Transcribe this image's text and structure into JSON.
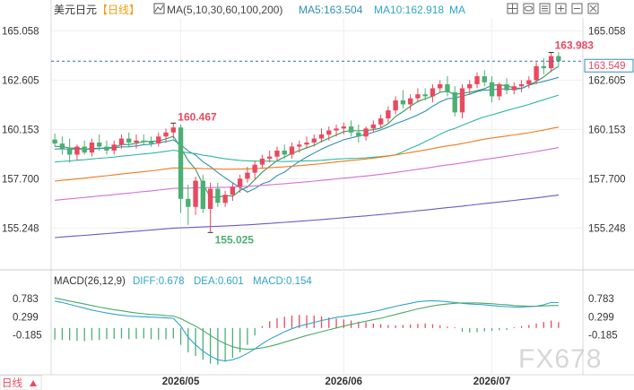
{
  "header": {
    "symbol": "美元日元",
    "period": "【日线】",
    "ma_label": "MA(5,10,30,60,100,200)",
    "ma5": "MA5:163.504",
    "ma10": "MA10:162.918",
    "ma_more": "MA",
    "icon_names": [
      "chart-type-icon",
      "grid-icon",
      "eye-icon",
      "menu-icon",
      "plus-icon",
      "minus-icon",
      "close-icon"
    ]
  },
  "macd_header": {
    "title": "MACD(26,12,9)",
    "diff": "DIFF:0.678",
    "dea": "DEA:0.601",
    "macd": "MACD:0.154"
  },
  "footer": {
    "period_tab": "日线",
    "tab_icon": "triangle-up-icon",
    "watermark": "FX678"
  },
  "colors": {
    "up": "#e84a5f",
    "down": "#4caf73",
    "ma5": "#2e9a5a",
    "ma10": "#2f8fb8",
    "ma30": "#2db8a0",
    "ma60": "#f07a1f",
    "ma100": "#d36fd8",
    "ma200": "#6d58c6",
    "diff": "#2fa5c9",
    "dea": "#4aa86a",
    "last_price_bg": "#ffffff",
    "last_price_text": "#e84a5f",
    "last_price_border": "#2f8fb8"
  },
  "chart_data": {
    "type": "candlestick",
    "x_ticks": [
      "2026/05",
      "2026/06",
      "2026/07"
    ],
    "y_ticks": [
      "165.058",
      "162.605",
      "160.153",
      "157.700",
      "155.248"
    ],
    "ylim": [
      153.3,
      165.7
    ],
    "annotations": {
      "high": "160.467",
      "low": "155.025",
      "recent_high": "163.983"
    },
    "last_price": "163.549",
    "last_price_value": 163.549,
    "candles": [
      [
        159.65,
        159.95,
        159.3,
        159.45
      ],
      [
        159.45,
        159.8,
        158.9,
        159.2
      ],
      [
        159.2,
        159.7,
        158.5,
        158.9
      ],
      [
        158.9,
        159.4,
        158.6,
        159.3
      ],
      [
        159.3,
        159.6,
        158.9,
        159.0
      ],
      [
        159.0,
        159.7,
        158.8,
        159.5
      ],
      [
        159.5,
        159.9,
        159.1,
        159.3
      ],
      [
        159.3,
        159.6,
        158.9,
        159.1
      ],
      [
        159.1,
        159.6,
        158.9,
        159.4
      ],
      [
        159.4,
        159.9,
        159.2,
        159.7
      ],
      [
        159.7,
        160.0,
        159.3,
        159.5
      ],
      [
        159.5,
        159.9,
        159.2,
        159.6
      ],
      [
        159.6,
        159.9,
        159.4,
        159.55
      ],
      [
        159.55,
        159.8,
        159.3,
        159.45
      ],
      [
        159.45,
        160.0,
        159.3,
        159.8
      ],
      [
        159.8,
        160.2,
        159.5,
        160.0
      ],
      [
        160.0,
        160.467,
        159.7,
        160.25
      ],
      [
        160.25,
        160.4,
        156.0,
        156.7
      ],
      [
        156.7,
        157.4,
        155.4,
        156.3
      ],
      [
        156.3,
        157.8,
        155.9,
        157.6
      ],
      [
        157.6,
        157.9,
        156.0,
        156.2
      ],
      [
        156.2,
        157.5,
        155.025,
        157.2
      ],
      [
        157.2,
        157.5,
        156.3,
        156.5
      ],
      [
        156.5,
        157.1,
        156.3,
        156.9
      ],
      [
        156.9,
        157.5,
        156.6,
        157.3
      ],
      [
        157.3,
        157.9,
        157.0,
        157.7
      ],
      [
        157.7,
        158.3,
        157.5,
        158.0
      ],
      [
        158.0,
        158.6,
        157.7,
        158.4
      ],
      [
        158.4,
        158.9,
        158.2,
        158.7
      ],
      [
        158.7,
        159.1,
        158.5,
        158.8
      ],
      [
        158.8,
        159.3,
        158.6,
        159.1
      ],
      [
        159.1,
        159.4,
        158.7,
        158.9
      ],
      [
        158.9,
        159.5,
        158.7,
        159.3
      ],
      [
        159.3,
        159.6,
        159.0,
        159.4
      ],
      [
        159.4,
        159.8,
        159.2,
        159.5
      ],
      [
        159.5,
        159.9,
        159.3,
        159.7
      ],
      [
        159.7,
        160.2,
        159.5,
        159.9
      ],
      [
        159.9,
        160.3,
        159.6,
        160.1
      ],
      [
        160.1,
        160.4,
        159.8,
        160.2
      ],
      [
        160.2,
        160.5,
        159.9,
        160.3
      ],
      [
        160.3,
        160.6,
        159.8,
        160.0
      ],
      [
        160.0,
        160.4,
        159.5,
        159.8
      ],
      [
        159.8,
        160.3,
        159.6,
        160.2
      ],
      [
        160.2,
        160.6,
        160.0,
        160.4
      ],
      [
        160.4,
        160.9,
        160.2,
        160.7
      ],
      [
        160.7,
        161.3,
        160.5,
        161.1
      ],
      [
        161.1,
        161.8,
        160.9,
        161.6
      ],
      [
        161.6,
        162.1,
        161.2,
        161.4
      ],
      [
        161.4,
        161.9,
        161.1,
        161.7
      ],
      [
        161.7,
        162.2,
        161.5,
        161.9
      ],
      [
        161.9,
        162.2,
        161.6,
        161.8
      ],
      [
        161.8,
        162.4,
        161.5,
        162.2
      ],
      [
        162.2,
        162.6,
        162.0,
        162.4
      ],
      [
        162.4,
        162.8,
        161.8,
        162.0
      ],
      [
        162.0,
        162.3,
        160.8,
        161.0
      ],
      [
        161.0,
        162.4,
        160.7,
        162.2
      ],
      [
        162.2,
        162.6,
        161.9,
        162.4
      ],
      [
        162.4,
        163.0,
        162.2,
        162.8
      ],
      [
        162.8,
        163.1,
        162.3,
        162.5
      ],
      [
        162.5,
        162.8,
        161.5,
        161.8
      ],
      [
        161.8,
        162.5,
        161.6,
        162.4
      ],
      [
        162.4,
        162.7,
        161.9,
        162.1
      ],
      [
        162.1,
        162.5,
        161.9,
        162.3
      ],
      [
        162.3,
        162.6,
        162.0,
        162.4
      ],
      [
        162.4,
        162.8,
        162.2,
        162.6
      ],
      [
        162.6,
        163.5,
        162.4,
        163.3
      ],
      [
        163.3,
        163.7,
        162.9,
        163.2
      ],
      [
        163.2,
        163.983,
        163.0,
        163.8
      ],
      [
        163.8,
        164.0,
        163.3,
        163.549
      ]
    ],
    "macd": {
      "ylim": [
        -1.25,
        1.05
      ],
      "y_ticks": [
        "0.783",
        "0.299",
        "-0.185"
      ],
      "hist": [
        -0.31,
        -0.32,
        -0.33,
        -0.34,
        -0.35,
        -0.33,
        -0.32,
        -0.3,
        -0.29,
        -0.28,
        -0.3,
        -0.29,
        -0.28,
        -0.3,
        -0.31,
        -0.3,
        -0.28,
        -0.45,
        -0.65,
        -0.75,
        -0.85,
        -0.95,
        -0.98,
        -0.9,
        -0.8,
        -0.65,
        -0.45,
        -0.2,
        0.05,
        0.18,
        0.26,
        0.3,
        0.33,
        0.35,
        0.34,
        0.33,
        0.31,
        0.28,
        0.25,
        0.23,
        0.2,
        0.17,
        0.15,
        0.12,
        0.1,
        0.08,
        0.07,
        0.08,
        0.09,
        0.11,
        0.12,
        0.1,
        0.07,
        0.04,
        0.02,
        -0.1,
        -0.12,
        -0.11,
        -0.09,
        -0.08,
        -0.06,
        -0.05,
        0.02,
        0.05,
        0.08,
        0.12,
        0.16,
        0.2,
        0.154
      ],
      "diff": [
        0.72,
        0.68,
        0.63,
        0.58,
        0.53,
        0.48,
        0.44,
        0.4,
        0.37,
        0.34,
        0.32,
        0.31,
        0.3,
        0.29,
        0.28,
        0.27,
        0.26,
        0.05,
        -0.25,
        -0.45,
        -0.62,
        -0.75,
        -0.85,
        -0.88,
        -0.85,
        -0.78,
        -0.68,
        -0.56,
        -0.42,
        -0.3,
        -0.2,
        -0.1,
        -0.02,
        0.05,
        0.1,
        0.15,
        0.2,
        0.24,
        0.28,
        0.31,
        0.34,
        0.37,
        0.4,
        0.44,
        0.48,
        0.53,
        0.58,
        0.62,
        0.66,
        0.7,
        0.72,
        0.73,
        0.72,
        0.7,
        0.68,
        0.66,
        0.64,
        0.63,
        0.62,
        0.6,
        0.58,
        0.57,
        0.56,
        0.56,
        0.57,
        0.58,
        0.62,
        0.68,
        0.678
      ],
      "dea": [
        0.8,
        0.76,
        0.72,
        0.68,
        0.64,
        0.6,
        0.56,
        0.52,
        0.49,
        0.46,
        0.43,
        0.4,
        0.38,
        0.36,
        0.35,
        0.33,
        0.32,
        0.25,
        0.15,
        0.05,
        -0.07,
        -0.2,
        -0.32,
        -0.42,
        -0.5,
        -0.55,
        -0.57,
        -0.56,
        -0.53,
        -0.49,
        -0.44,
        -0.38,
        -0.32,
        -0.26,
        -0.2,
        -0.15,
        -0.1,
        -0.05,
        0.0,
        0.05,
        0.1,
        0.14,
        0.18,
        0.22,
        0.26,
        0.31,
        0.36,
        0.41,
        0.46,
        0.51,
        0.55,
        0.59,
        0.62,
        0.64,
        0.66,
        0.67,
        0.67,
        0.67,
        0.66,
        0.65,
        0.63,
        0.62,
        0.6,
        0.59,
        0.58,
        0.58,
        0.59,
        0.6,
        0.601
      ]
    }
  }
}
